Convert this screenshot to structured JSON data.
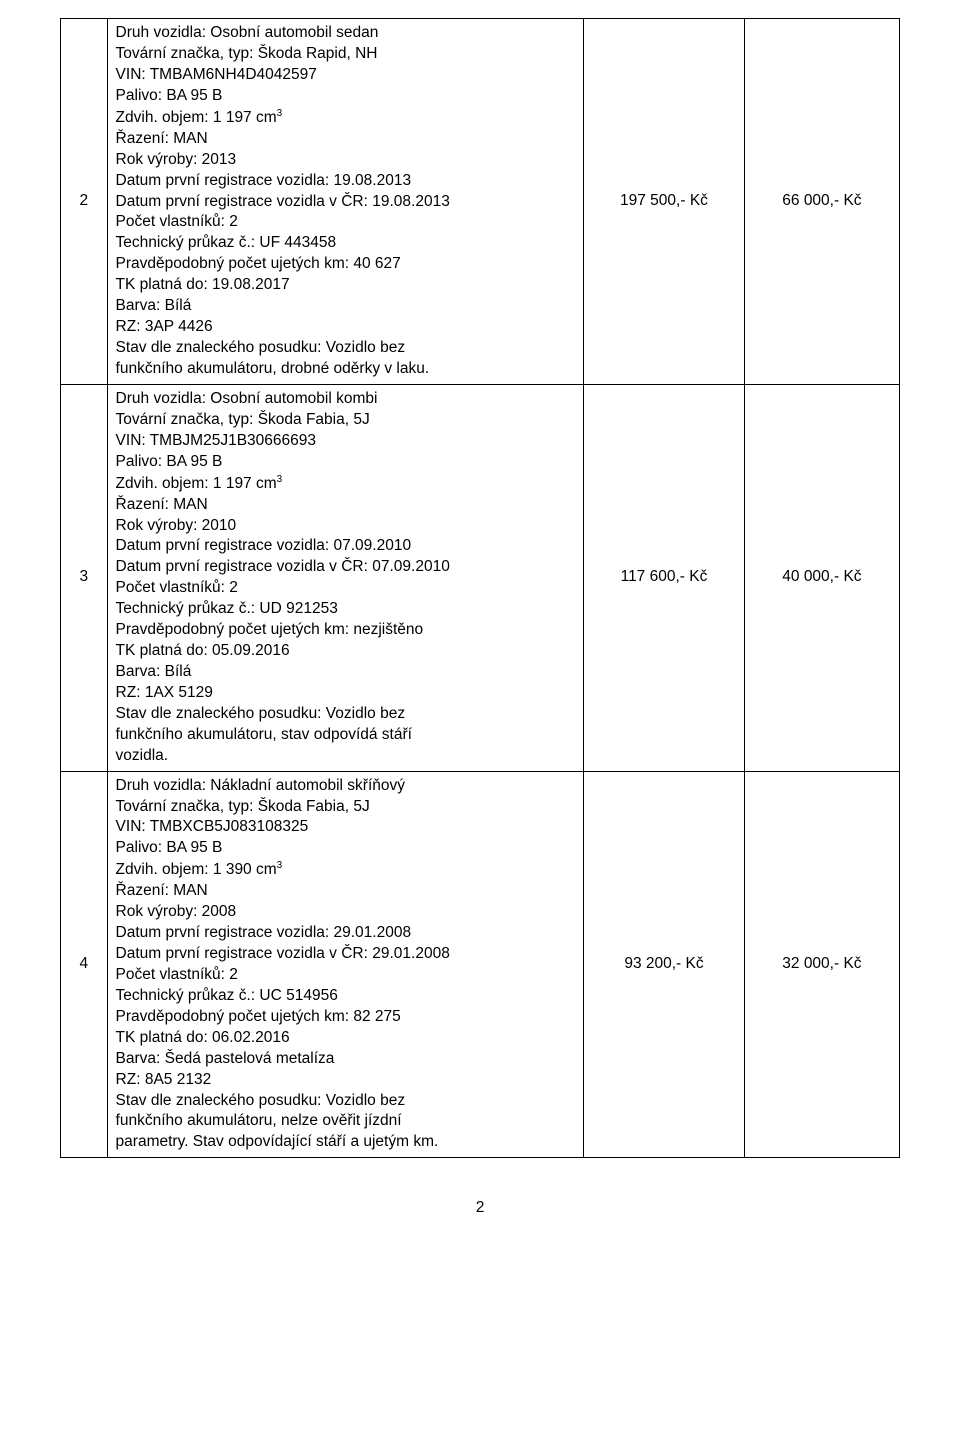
{
  "rows": [
    {
      "num": "2",
      "price1": "197 500,- Kč",
      "price2": "66 000,- Kč",
      "lines": [
        "Druh vozidla: Osobní automobil sedan",
        "Tovární značka, typ: Škoda Rapid, NH",
        "VIN: TMBAM6NH4D4042597",
        "Palivo: BA 95 B",
        "__VOL__",
        "Řazení: MAN",
        "Rok výroby: 2013",
        "Datum první registrace vozidla: 19.08.2013",
        "Datum první registrace vozidla v ČR: 19.08.2013",
        "Počet vlastníků: 2",
        "Technický průkaz č.: UF 443458",
        "Pravděpodobný počet ujetých km: 40 627",
        "TK platná do: 19.08.2017",
        "Barva: Bílá",
        "RZ: 3AP 4426",
        "Stav dle znaleckého posudku: Vozidlo bez",
        "funkčního akumulátoru, drobné oděrky v laku."
      ],
      "vol_prefix": "Zdvih. objem: 1 197 cm",
      "vol_sup": "3"
    },
    {
      "num": "3",
      "price1": "117 600,- Kč",
      "price2": "40 000,- Kč",
      "lines": [
        "Druh vozidla: Osobní automobil kombi",
        "Tovární značka, typ: Škoda Fabia, 5J",
        "VIN: TMBJM25J1B30666693",
        "Palivo: BA 95 B",
        "__VOL__",
        "Řazení: MAN",
        "Rok výroby: 2010",
        "Datum první registrace vozidla: 07.09.2010",
        "Datum první registrace vozidla v ČR: 07.09.2010",
        "Počet vlastníků: 2",
        "Technický průkaz č.: UD 921253",
        "Pravděpodobný počet ujetých km: nezjištěno",
        "TK platná do: 05.09.2016",
        "Barva: Bílá",
        "RZ: 1AX 5129",
        "Stav dle znaleckého posudku: Vozidlo bez",
        "funkčního akumulátoru, stav odpovídá stáří",
        "vozidla."
      ],
      "vol_prefix": "Zdvih. objem: 1 197 cm",
      "vol_sup": "3"
    },
    {
      "num": "4",
      "price1": "93 200,- Kč",
      "price2": "32 000,- Kč",
      "lines": [
        "Druh vozidla: Nákladní automobil skříňový",
        "Tovární značka, typ: Škoda Fabia, 5J",
        "VIN: TMBXCB5J083108325",
        "Palivo: BA 95 B",
        "__VOL__",
        "Řazení: MAN",
        "Rok výroby: 2008",
        "Datum první registrace vozidla: 29.01.2008",
        "Datum první registrace vozidla v ČR: 29.01.2008",
        "Počet vlastníků: 2",
        "Technický průkaz č.: UC 514956",
        "Pravděpodobný počet ujetých km: 82 275",
        "TK platná do: 06.02.2016",
        "Barva: Šedá pastelová metalíza",
        "RZ: 8A5 2132",
        "Stav dle znaleckého posudku: Vozidlo bez",
        "funkčního akumulátoru, nelze ověřit jízdní",
        "parametry. Stav odpovídající stáří a ujetým km."
      ],
      "vol_prefix": "Zdvih. objem: 1 390 cm",
      "vol_sup": "3"
    }
  ],
  "page_number": "2"
}
